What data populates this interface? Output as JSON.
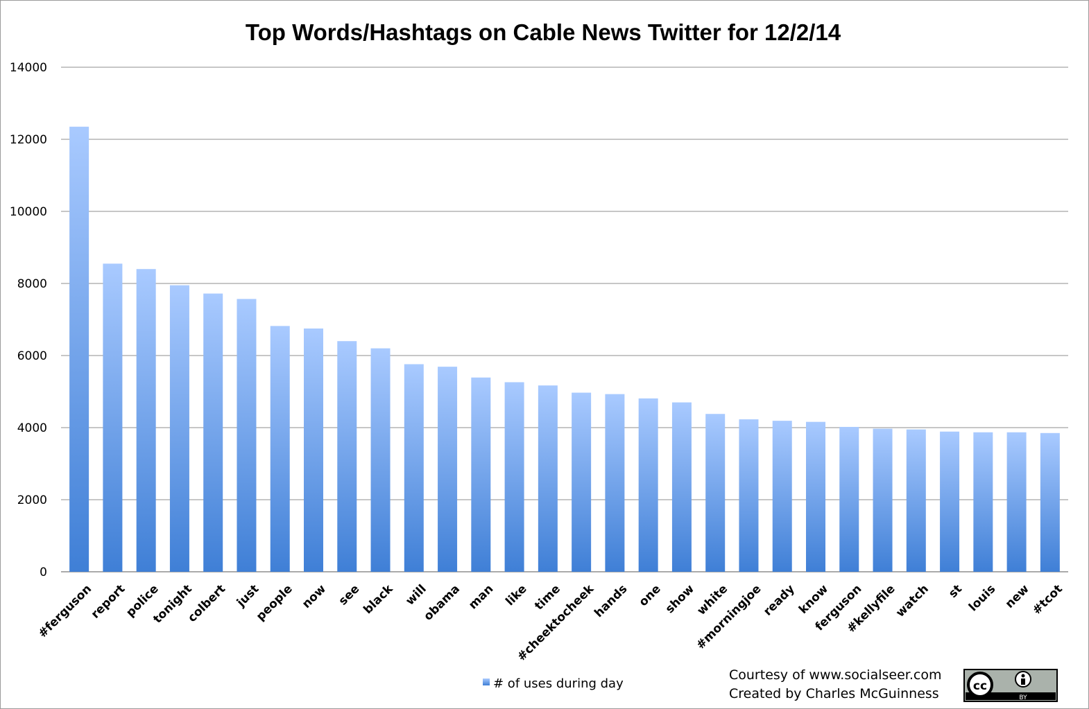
{
  "chart_data": {
    "type": "bar",
    "title": "Top Words/Hashtags on Cable News Twitter for 12/2/14",
    "xlabel": "",
    "ylabel": "",
    "ylim": [
      0,
      14000
    ],
    "yticks": [
      0,
      2000,
      4000,
      6000,
      8000,
      10000,
      12000,
      14000
    ],
    "grid": true,
    "legend_position": "bottom",
    "categories": [
      "#ferguson",
      "report",
      "police",
      "tonight",
      "colbert",
      "just",
      "people",
      "now",
      "see",
      "black",
      "will",
      "obama",
      "man",
      "like",
      "time",
      "#cheektocheek",
      "hands",
      "one",
      "show",
      "white",
      "#morningjoe",
      "ready",
      "know",
      "ferguson",
      "#kellyfile",
      "watch",
      "st",
      "louis",
      "new",
      "#tcot"
    ],
    "series": [
      {
        "name": "# of uses during day",
        "values": [
          12350,
          8550,
          8400,
          7950,
          7720,
          7570,
          6820,
          6750,
          6400,
          6200,
          5760,
          5690,
          5390,
          5260,
          5170,
          4970,
          4930,
          4810,
          4700,
          4380,
          4230,
          4190,
          4160,
          4020,
          3970,
          3950,
          3890,
          3870,
          3870,
          3850
        ]
      }
    ],
    "colors": {
      "bar_top": "#a9caff",
      "bar_bottom": "#3f7fd6",
      "grid": "#8c8c8c"
    }
  },
  "footer": {
    "courtesy": "Courtesy of www.socialseer.com",
    "created_by": "Created by Charles McGuinness"
  },
  "license_badge": {
    "icon": "creative-commons-by-icon",
    "cc_text": "cc",
    "by_text": "BY"
  }
}
